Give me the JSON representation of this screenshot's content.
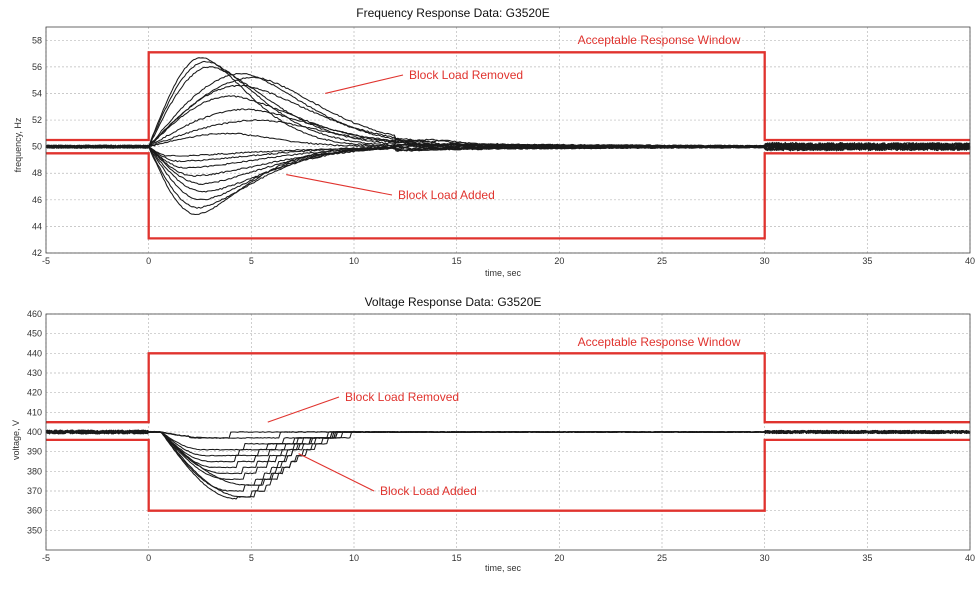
{
  "chart_data": [
    {
      "type": "line",
      "title": "Frequency Response Data: G3520E",
      "xlabel": "time, sec",
      "ylabel": "frequency, Hz",
      "xlim": [
        -5,
        40
      ],
      "ylim": [
        42,
        59
      ],
      "xticks": [
        -5,
        0,
        5,
        10,
        15,
        20,
        25,
        30,
        35,
        40
      ],
      "yticks": [
        42,
        44,
        46,
        48,
        50,
        52,
        54,
        56,
        58
      ],
      "grid": true,
      "window": {
        "name": "Acceptable Response Window",
        "color": "#e0332e",
        "upper": [
          [
            -5,
            50.5
          ],
          [
            0,
            50.5
          ],
          [
            0,
            57.1
          ],
          [
            30,
            57.1
          ],
          [
            30,
            50.5
          ],
          [
            40,
            50.5
          ]
        ],
        "lower": [
          [
            -5,
            49.5
          ],
          [
            0,
            49.5
          ],
          [
            0,
            43.1
          ],
          [
            30,
            43.1
          ],
          [
            30,
            49.5
          ],
          [
            40,
            49.5
          ]
        ]
      },
      "annotations": [
        {
          "text": "Acceptable Response Window",
          "x": 20,
          "y": 57.4,
          "target": null
        },
        {
          "text": "Block Load Removed",
          "x": 12.6,
          "y": 55.3,
          "target": [
            8.6,
            54.0
          ]
        },
        {
          "text": "Block Load Added",
          "x": 12.1,
          "y": 46.0,
          "target": [
            6.7,
            47.9
          ]
        }
      ],
      "baseline": 50.0,
      "series": [
        {
          "group": "removed",
          "peak_dev": 6.7,
          "t_peak": 2.6,
          "settle": 9
        },
        {
          "group": "removed",
          "peak_dev": 6.4,
          "t_peak": 2.8,
          "settle": 10
        },
        {
          "group": "removed",
          "peak_dev": 6.0,
          "t_peak": 3.0,
          "settle": 11
        },
        {
          "group": "removed",
          "peak_dev": 5.5,
          "t_peak": 4.6,
          "settle": 13
        },
        {
          "group": "removed",
          "peak_dev": 5.2,
          "t_peak": 5.2,
          "settle": 14
        },
        {
          "group": "removed",
          "peak_dev": 4.6,
          "t_peak": 4.5,
          "settle": 14
        },
        {
          "group": "removed",
          "peak_dev": 3.8,
          "t_peak": 4.0,
          "settle": 13
        },
        {
          "group": "removed",
          "peak_dev": 2.8,
          "t_peak": 4.8,
          "settle": 14
        },
        {
          "group": "removed",
          "peak_dev": 2.0,
          "t_peak": 5.5,
          "settle": 14
        },
        {
          "group": "removed",
          "peak_dev": 1.0,
          "t_peak": 4.0,
          "settle": 10
        },
        {
          "group": "added",
          "peak_dev": -5.1,
          "t_peak": 2.3,
          "settle": 9
        },
        {
          "group": "added",
          "peak_dev": -4.6,
          "t_peak": 2.4,
          "settle": 10
        },
        {
          "group": "added",
          "peak_dev": -4.0,
          "t_peak": 2.6,
          "settle": 10
        },
        {
          "group": "added",
          "peak_dev": -3.4,
          "t_peak": 2.7,
          "settle": 11
        },
        {
          "group": "added",
          "peak_dev": -2.8,
          "t_peak": 2.6,
          "settle": 11
        },
        {
          "group": "added",
          "peak_dev": -2.2,
          "t_peak": 2.2,
          "settle": 12
        },
        {
          "group": "added",
          "peak_dev": -1.6,
          "t_peak": 1.8,
          "settle": 12
        },
        {
          "group": "added",
          "peak_dev": -1.1,
          "t_peak": 1.5,
          "settle": 12
        },
        {
          "group": "added",
          "peak_dev": -0.7,
          "t_peak": 1.0,
          "settle": 13
        }
      ]
    },
    {
      "type": "line",
      "title": "Voltage Response Data: G3520E",
      "xlabel": "time, sec",
      "ylabel": "voltage, V",
      "xlim": [
        -5,
        40
      ],
      "ylim": [
        340,
        460
      ],
      "xticks": [
        -5,
        0,
        5,
        10,
        15,
        20,
        25,
        30,
        35,
        40
      ],
      "yticks": [
        350,
        360,
        370,
        380,
        390,
        400,
        410,
        420,
        430,
        440,
        450,
        460
      ],
      "grid": true,
      "window": {
        "name": "Acceptable Response Window",
        "color": "#e0332e",
        "upper": [
          [
            -5,
            405
          ],
          [
            0,
            405
          ],
          [
            0,
            440
          ],
          [
            30,
            440
          ],
          [
            30,
            405
          ],
          [
            40,
            405
          ]
        ],
        "lower": [
          [
            -5,
            396
          ],
          [
            0,
            396
          ],
          [
            0,
            360
          ],
          [
            30,
            360
          ],
          [
            30,
            396
          ],
          [
            40,
            396
          ]
        ]
      },
      "annotations": [
        {
          "text": "Acceptable Response Window",
          "x": 20,
          "y": 441.5,
          "target": null
        },
        {
          "text": "Block Load Removed",
          "x": 9.7,
          "y": 414,
          "target": [
            5.8,
            405
          ]
        },
        {
          "text": "Block Load Added",
          "x": 11.1,
          "y": 383,
          "target": [
            7.3,
            389
          ]
        }
      ],
      "baseline": 400,
      "series": [
        {
          "group": "added",
          "min": 366,
          "t_min": 4.3,
          "recover": 5.5
        },
        {
          "group": "added",
          "min": 367,
          "t_min": 4.6,
          "recover": 6.0
        },
        {
          "group": "added",
          "min": 370,
          "t_min": 4.0,
          "recover": 6.5
        },
        {
          "group": "added",
          "min": 373,
          "t_min": 4.8,
          "recover": 6.5
        },
        {
          "group": "added",
          "min": 376,
          "t_min": 3.8,
          "recover": 7.0
        },
        {
          "group": "added",
          "min": 379,
          "t_min": 3.6,
          "recover": 7.5
        },
        {
          "group": "added",
          "min": 382,
          "t_min": 3.2,
          "recover": 8.0
        },
        {
          "group": "added",
          "min": 385,
          "t_min": 3.0,
          "recover": 8.5
        },
        {
          "group": "added",
          "min": 388,
          "t_min": 2.8,
          "recover": 9.5
        },
        {
          "group": "added",
          "min": 391,
          "t_min": 2.6,
          "recover": 10.5
        },
        {
          "group": "removed",
          "min": 398,
          "t_min": 2.0,
          "recover": 8.0
        },
        {
          "group": "removed",
          "min": 397,
          "t_min": 3.0,
          "recover": 9.0
        }
      ]
    }
  ]
}
